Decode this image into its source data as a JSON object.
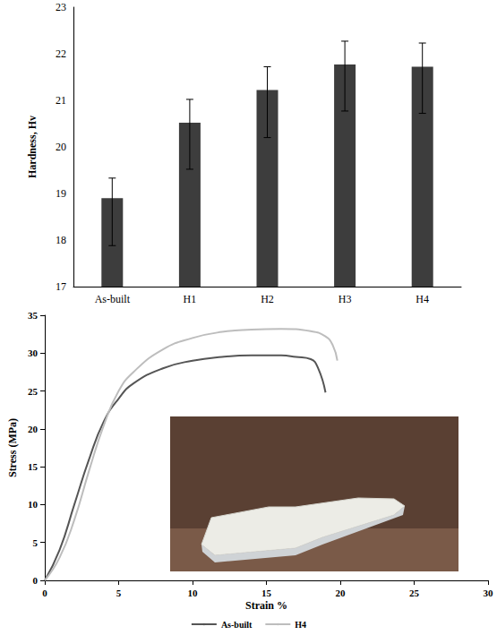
{
  "chart_data": [
    {
      "type": "bar",
      "y_label": "Hardness, Hv",
      "categories": [
        "As-built",
        "H1",
        "H2",
        "H3",
        "H4"
      ],
      "values": [
        18.9,
        20.52,
        21.22,
        21.77,
        21.72
      ],
      "error_minus": [
        1.02,
        1.0,
        1.02,
        1.0,
        1.0
      ],
      "error_plus": [
        0.43,
        0.5,
        0.5,
        0.5,
        0.51
      ],
      "color": "#3d3d3d",
      "ylim": [
        17,
        23
      ],
      "yticks": [
        17,
        18,
        19,
        20,
        21,
        22,
        23
      ],
      "grid": false
    },
    {
      "type": "line",
      "x_label": "Strain %",
      "y_label": "Stress (MPa)",
      "series": [
        {
          "name": "As-built",
          "color": "#555555",
          "x": [
            0,
            1,
            2,
            3,
            4,
            5,
            6,
            8,
            10,
            12,
            14,
            16,
            17,
            18,
            18.5,
            19
          ],
          "values": [
            0,
            4,
            10,
            16,
            21,
            24,
            26,
            28,
            29,
            29.5,
            29.7,
            29.7,
            29.5,
            29.2,
            28,
            24.8
          ]
        },
        {
          "name": "H4",
          "color": "#bdbdbd",
          "x": [
            0,
            1,
            2,
            3,
            4,
            5,
            6,
            8,
            10,
            12,
            14,
            16,
            18,
            19,
            19.5,
            19.8
          ],
          "values": [
            0,
            3,
            8,
            14.5,
            20.5,
            25,
            27.5,
            30.5,
            32,
            32.8,
            33.1,
            33.2,
            32.9,
            32.2,
            31,
            29
          ]
        }
      ],
      "xlim": [
        0,
        30
      ],
      "xticks": [
        0,
        5,
        10,
        15,
        20,
        25,
        30
      ],
      "ylim": [
        0,
        35
      ],
      "yticks": [
        0,
        5,
        10,
        15,
        20,
        25,
        30,
        35
      ],
      "legend": "bottom",
      "grid": false
    }
  ]
}
